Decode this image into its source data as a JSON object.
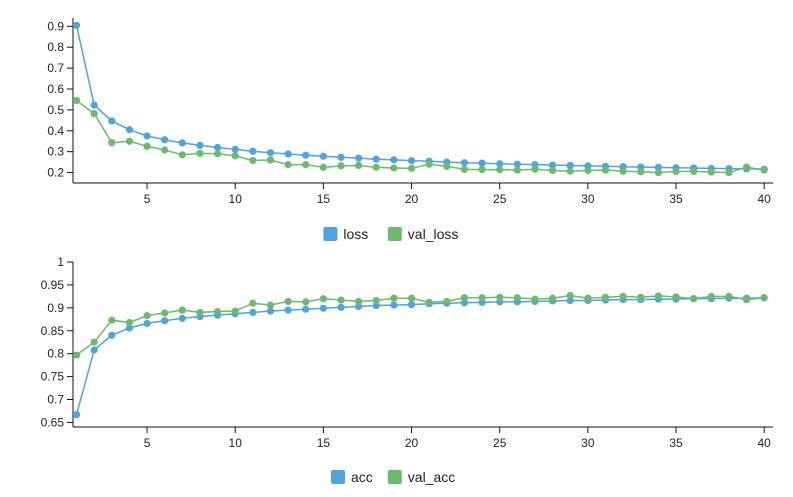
{
  "chart_data": [
    {
      "type": "line",
      "x": [
        1,
        2,
        3,
        4,
        5,
        6,
        7,
        8,
        9,
        10,
        11,
        12,
        13,
        14,
        15,
        16,
        17,
        18,
        19,
        20,
        21,
        22,
        23,
        24,
        25,
        26,
        27,
        28,
        29,
        30,
        31,
        32,
        33,
        34,
        35,
        36,
        37,
        38,
        39,
        40
      ],
      "series": [
        {
          "name": "loss",
          "color": "#4fa3e0",
          "values": [
            0.905,
            0.523,
            0.447,
            0.405,
            0.375,
            0.357,
            0.342,
            0.33,
            0.32,
            0.311,
            0.302,
            0.295,
            0.289,
            0.283,
            0.278,
            0.273,
            0.269,
            0.264,
            0.261,
            0.257,
            0.254,
            0.25,
            0.247,
            0.245,
            0.242,
            0.24,
            0.238,
            0.236,
            0.234,
            0.232,
            0.23,
            0.228,
            0.226,
            0.225,
            0.223,
            0.222,
            0.22,
            0.219,
            0.218,
            0.216
          ]
        },
        {
          "name": "val_loss",
          "color": "#6cba6c",
          "values": [
            0.545,
            0.482,
            0.343,
            0.35,
            0.326,
            0.308,
            0.285,
            0.292,
            0.29,
            0.28,
            0.258,
            0.26,
            0.238,
            0.238,
            0.225,
            0.232,
            0.234,
            0.225,
            0.222,
            0.22,
            0.24,
            0.23,
            0.215,
            0.214,
            0.214,
            0.212,
            0.216,
            0.21,
            0.207,
            0.21,
            0.212,
            0.206,
            0.204,
            0.2,
            0.205,
            0.206,
            0.202,
            0.2,
            0.226,
            0.212
          ]
        }
      ],
      "xlim": [
        0.8,
        40.5
      ],
      "ylim": [
        0.15,
        0.94
      ],
      "xticks": [
        5,
        10,
        15,
        20,
        25,
        30,
        35,
        40
      ],
      "yticks": [
        0.2,
        0.3,
        0.4,
        0.5,
        0.6,
        0.7,
        0.8,
        0.9
      ],
      "ytick_labels": [
        "0.2",
        "0.3",
        "0.4",
        "0.5",
        "0.6",
        "0.7",
        "0.8",
        "0.9"
      ],
      "xlabel": "",
      "ylabel": "",
      "grid": false,
      "legend": "bottom-center"
    },
    {
      "type": "line",
      "x": [
        1,
        2,
        3,
        4,
        5,
        6,
        7,
        8,
        9,
        10,
        11,
        12,
        13,
        14,
        15,
        16,
        17,
        18,
        19,
        20,
        21,
        22,
        23,
        24,
        25,
        26,
        27,
        28,
        29,
        30,
        31,
        32,
        33,
        34,
        35,
        36,
        37,
        38,
        39,
        40
      ],
      "series": [
        {
          "name": "acc",
          "color": "#4fa3e0",
          "values": [
            0.667,
            0.808,
            0.84,
            0.856,
            0.866,
            0.872,
            0.877,
            0.881,
            0.884,
            0.887,
            0.89,
            0.893,
            0.895,
            0.897,
            0.899,
            0.901,
            0.903,
            0.905,
            0.906,
            0.907,
            0.909,
            0.91,
            0.911,
            0.912,
            0.913,
            0.913,
            0.914,
            0.915,
            0.916,
            0.916,
            0.917,
            0.918,
            0.918,
            0.919,
            0.919,
            0.92,
            0.92,
            0.921,
            0.921,
            0.922
          ]
        },
        {
          "name": "val_acc",
          "color": "#6cba6c",
          "values": [
            0.797,
            0.825,
            0.873,
            0.868,
            0.883,
            0.889,
            0.895,
            0.89,
            0.892,
            0.893,
            0.91,
            0.906,
            0.914,
            0.913,
            0.92,
            0.917,
            0.914,
            0.916,
            0.921,
            0.921,
            0.912,
            0.914,
            0.922,
            0.922,
            0.923,
            0.922,
            0.919,
            0.921,
            0.927,
            0.921,
            0.923,
            0.925,
            0.923,
            0.926,
            0.924,
            0.92,
            0.925,
            0.925,
            0.918,
            0.922
          ]
        }
      ],
      "xlim": [
        0.8,
        40.5
      ],
      "ylim": [
        0.64,
        1.0
      ],
      "xticks": [
        5,
        10,
        15,
        20,
        25,
        30,
        35,
        40
      ],
      "yticks": [
        0.65,
        0.7,
        0.75,
        0.8,
        0.85,
        0.9,
        0.95,
        1.0
      ],
      "ytick_labels": [
        "0.65",
        "0.7",
        "0.75",
        "0.8",
        "0.85",
        "0.9",
        "0.95",
        "1"
      ],
      "xlabel": "",
      "ylabel": "",
      "grid": false,
      "legend": "bottom-center"
    }
  ]
}
